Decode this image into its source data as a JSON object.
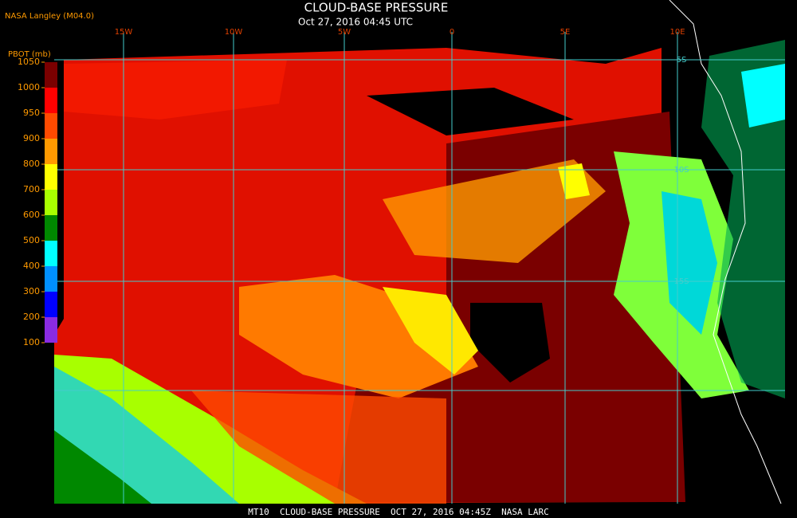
{
  "header": {
    "source": "NASA Langley (M04.0)",
    "title": "CLOUD-BASE PRESSURE",
    "subtitle": "Oct 27, 2016 04:45 UTC"
  },
  "colorbar": {
    "label": "PBOT (mb)",
    "ticks": [
      1050,
      1000,
      950,
      900,
      800,
      700,
      600,
      500,
      400,
      300,
      200,
      100
    ],
    "colors": [
      "#7a0000",
      "#ff0000",
      "#ff4a00",
      "#ff9a00",
      "#ffff00",
      "#a8ff00",
      "#008800",
      "#00ffff",
      "#0090ff",
      "#0000ff",
      "#8a2be2"
    ]
  },
  "grid": {
    "lon_labels": [
      "15W",
      "10W",
      "5W",
      "0",
      "5E",
      "10E"
    ],
    "lat_labels": [
      "5S",
      "10S",
      "15S"
    ]
  },
  "footer": "MT10  CLOUD-BASE PRESSURE  OCT 27, 2016 04:45Z  NASA LARC"
}
